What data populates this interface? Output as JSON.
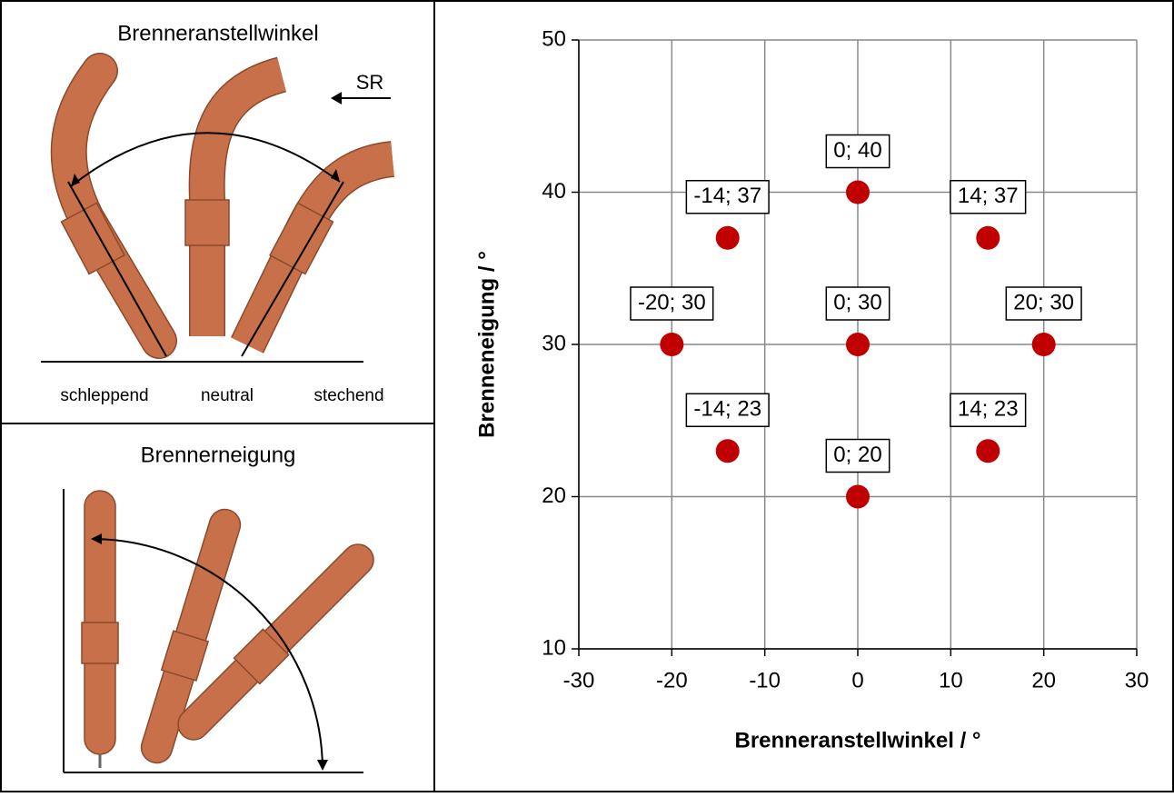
{
  "diagrams": {
    "angle": {
      "title": "Brenneranstellwinkel",
      "direction": "SR",
      "labels": [
        "schleppend",
        "neutral",
        "stechend"
      ]
    },
    "tilt": {
      "title": "Brennerneigung"
    }
  },
  "chart_data": {
    "type": "scatter",
    "x": [
      0,
      -14,
      14,
      -20,
      0,
      20,
      -14,
      14,
      0
    ],
    "values": [
      40,
      37,
      37,
      30,
      30,
      30,
      23,
      23,
      20
    ],
    "value_labels": [
      "0; 40",
      "-14; 37",
      "14; 37",
      "-20; 30",
      "0; 30",
      "20; 30",
      "-14; 23",
      "14; 23",
      "0; 20"
    ],
    "color": "#c00000",
    "x_label": "Brenneranstellwinkel / °",
    "y_label": "Brenneneigung / °",
    "xlim": [
      -30,
      30
    ],
    "xticks": [
      -30,
      -20,
      -10,
      0,
      10,
      20,
      30
    ],
    "ylim": [
      10,
      50
    ],
    "yticks": [
      10,
      20,
      30,
      40,
      50
    ],
    "grid": true
  }
}
